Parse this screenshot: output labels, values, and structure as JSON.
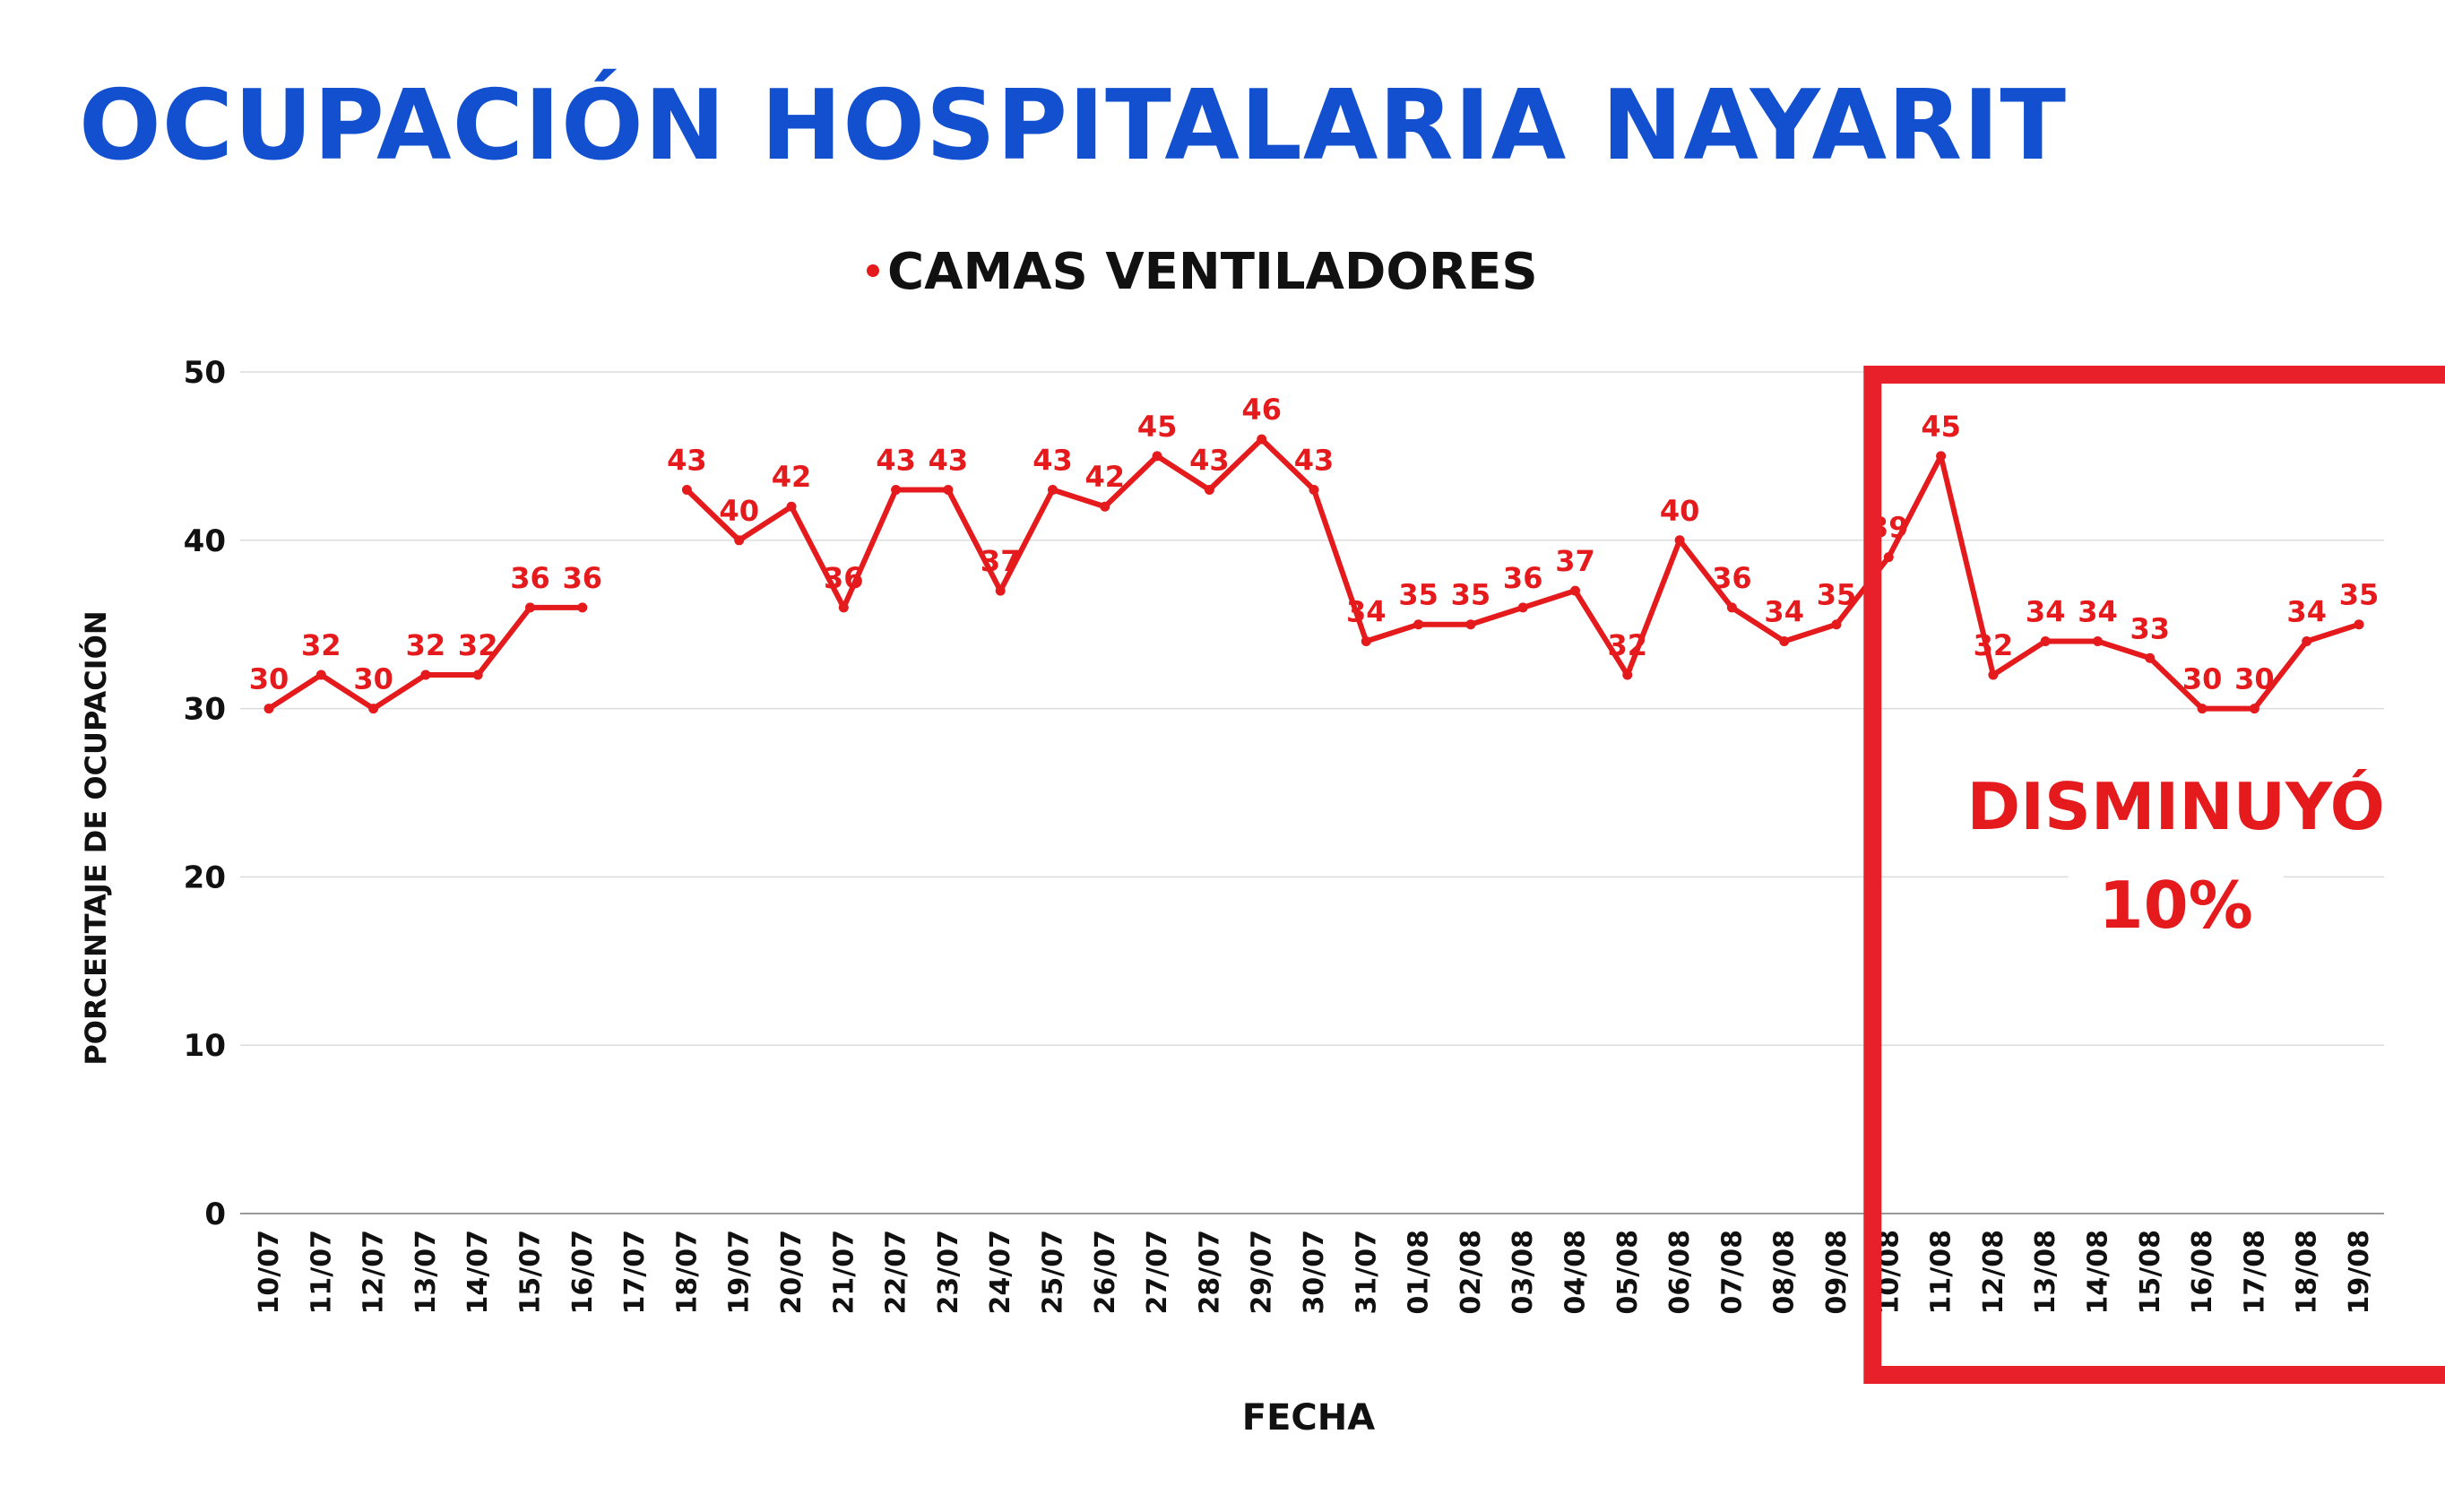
{
  "title": "OCUPACIÓN HOSPITALARIA NAYARIT",
  "chart_data": {
    "type": "line",
    "title": "",
    "xlabel": "FECHA",
    "ylabel": "PORCENTAJE DE OCUPACIÓN",
    "ylim": [
      0,
      50
    ],
    "yticks": [
      0,
      10,
      20,
      30,
      40,
      50
    ],
    "grid": true,
    "legend": "top-center",
    "categories": [
      "10/07",
      "11/07",
      "12/07",
      "13/07",
      "14/07",
      "15/07",
      "16/07",
      "17/07",
      "18/07",
      "19/07",
      "20/07",
      "21/07",
      "22/07",
      "23/07",
      "24/07",
      "25/07",
      "26/07",
      "27/07",
      "28/07",
      "29/07",
      "30/07",
      "31/07",
      "01/08",
      "02/08",
      "03/08",
      "04/08",
      "05/08",
      "06/08",
      "07/08",
      "08/08",
      "09/08",
      "10/08",
      "11/08",
      "12/08",
      "13/08",
      "14/08",
      "15/08",
      "16/08",
      "17/08",
      "18/08",
      "19/08"
    ],
    "series": [
      {
        "name": "CAMAS VENTILADORES",
        "color": "#e41a1c",
        "values": [
          30,
          32,
          30,
          32,
          32,
          36,
          36,
          null,
          43,
          40,
          42,
          36,
          43,
          43,
          37,
          43,
          42,
          45,
          43,
          46,
          43,
          34,
          35,
          35,
          36,
          37,
          32,
          40,
          36,
          34,
          35,
          39,
          45,
          32,
          34,
          34,
          33,
          30,
          30,
          34,
          35
        ]
      }
    ],
    "annotation": {
      "text_line1": "DISMINUYÓ",
      "text_line2": "10%",
      "box_color": "#e8202a",
      "from_category": "10/08",
      "to_category": "19/08"
    }
  }
}
